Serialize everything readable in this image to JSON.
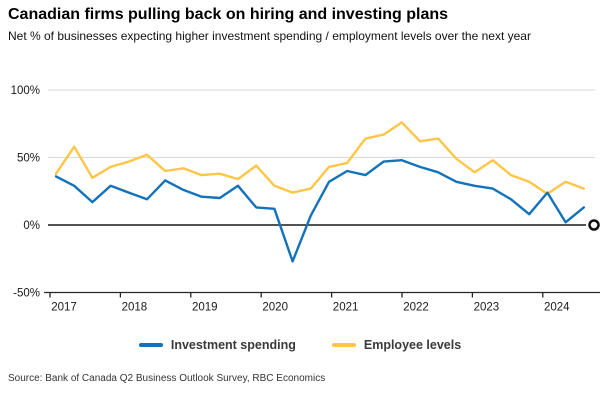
{
  "header": {
    "title": "Canadian firms pulling back on hiring and investing plans",
    "subtitle": "Net % of businesses expecting higher investment spending / employment levels over the next year"
  },
  "legend": {
    "items": [
      {
        "label": "Investment spending",
        "color": "#1272BC"
      },
      {
        "label": "Employee levels",
        "color": "#FDC647"
      }
    ]
  },
  "source": "Source: Bank of Canada Q2 Business Outlook Survey, RBC Economics",
  "colors": {
    "investment_line": "#1272BC",
    "employee_line": "#FDC647",
    "gridline": "#d9d9d9",
    "zero_line": "#1a1a1a",
    "axis_line": "#262626",
    "axis_text": "#1a1a1a"
  },
  "chart_data": {
    "type": "line",
    "title": "Canadian firms pulling back on hiring and investing plans",
    "xlabel": "",
    "ylabel": "Net % of businesses expecting higher investment spending / employment levels over the next year",
    "x": [
      "2017 Q1",
      "2017 Q2",
      "2017 Q3",
      "2017 Q4",
      "2018 Q1",
      "2018 Q2",
      "2018 Q3",
      "2018 Q4",
      "2019 Q1",
      "2019 Q2",
      "2019 Q3",
      "2019 Q4",
      "2020 Q1",
      "2020 Q2",
      "2020 Q3",
      "2020 Q4",
      "2021 Q1",
      "2021 Q2",
      "2021 Q3",
      "2021 Q4",
      "2022 Q1",
      "2022 Q2",
      "2022 Q3",
      "2022 Q4",
      "2023 Q1",
      "2023 Q2",
      "2023 Q3",
      "2023 Q4",
      "2024 Q1",
      "2024 Q2"
    ],
    "series": [
      {
        "name": "Investment spending",
        "values": [
          36,
          29,
          17,
          29,
          24,
          19,
          33,
          26,
          21,
          20,
          29,
          13,
          12,
          -27,
          7,
          32,
          40,
          37,
          47,
          48,
          43,
          39,
          32,
          29,
          27,
          19,
          8,
          24,
          2,
          13
        ]
      },
      {
        "name": "Employee levels",
        "values": [
          38,
          58,
          35,
          43,
          47,
          52,
          40,
          42,
          37,
          38,
          34,
          44,
          29,
          24,
          27,
          43,
          46,
          64,
          67,
          76,
          62,
          64,
          49,
          39,
          48,
          37,
          32,
          23,
          32,
          27
        ]
      }
    ],
    "ylim": [
      -50,
      100
    ],
    "yticks": [
      100,
      50,
      0,
      -50
    ],
    "ytick_labels": [
      "100%",
      "50%",
      "0%",
      "-50%"
    ],
    "xticks": [
      2017,
      2018,
      2019,
      2020,
      2021,
      2022,
      2023,
      2024
    ],
    "grid": "light horizontal gridlines at 50% and 100%; solid dark line at 0%; bottom axis at -50% with year tick marks",
    "zero_line_end_marker": "open circle at right end of 0% line",
    "legend_position": "bottom"
  }
}
